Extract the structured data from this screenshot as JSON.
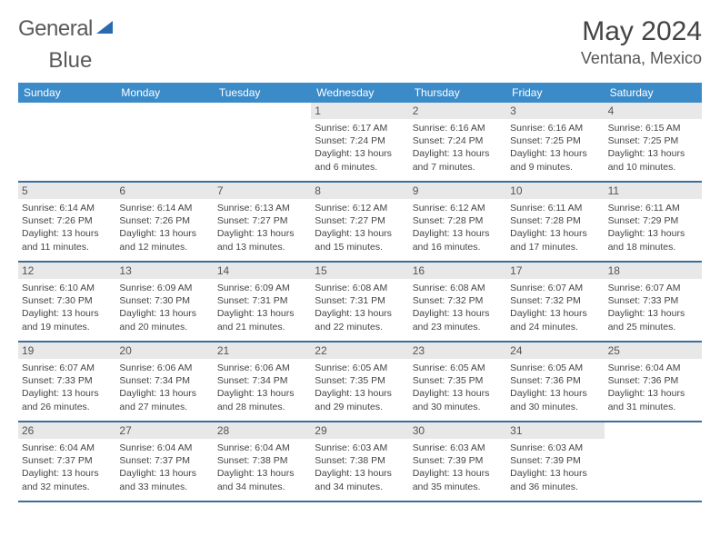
{
  "logo": {
    "text1": "General",
    "text2": "Blue",
    "icon_color": "#2a6bb0"
  },
  "title": "May 2024",
  "location": "Ventana, Mexico",
  "colors": {
    "header_bg": "#3b8bc9",
    "header_text": "#ffffff",
    "daynum_bg": "#e8e8e8",
    "week_border": "#3b6e9c",
    "body_text": "#444444"
  },
  "day_names": [
    "Sunday",
    "Monday",
    "Tuesday",
    "Wednesday",
    "Thursday",
    "Friday",
    "Saturday"
  ],
  "weeks": [
    [
      null,
      null,
      null,
      {
        "n": "1",
        "sr": "6:17 AM",
        "ss": "7:24 PM",
        "dl": "13 hours and 6 minutes."
      },
      {
        "n": "2",
        "sr": "6:16 AM",
        "ss": "7:24 PM",
        "dl": "13 hours and 7 minutes."
      },
      {
        "n": "3",
        "sr": "6:16 AM",
        "ss": "7:25 PM",
        "dl": "13 hours and 9 minutes."
      },
      {
        "n": "4",
        "sr": "6:15 AM",
        "ss": "7:25 PM",
        "dl": "13 hours and 10 minutes."
      }
    ],
    [
      {
        "n": "5",
        "sr": "6:14 AM",
        "ss": "7:26 PM",
        "dl": "13 hours and 11 minutes."
      },
      {
        "n": "6",
        "sr": "6:14 AM",
        "ss": "7:26 PM",
        "dl": "13 hours and 12 minutes."
      },
      {
        "n": "7",
        "sr": "6:13 AM",
        "ss": "7:27 PM",
        "dl": "13 hours and 13 minutes."
      },
      {
        "n": "8",
        "sr": "6:12 AM",
        "ss": "7:27 PM",
        "dl": "13 hours and 15 minutes."
      },
      {
        "n": "9",
        "sr": "6:12 AM",
        "ss": "7:28 PM",
        "dl": "13 hours and 16 minutes."
      },
      {
        "n": "10",
        "sr": "6:11 AM",
        "ss": "7:28 PM",
        "dl": "13 hours and 17 minutes."
      },
      {
        "n": "11",
        "sr": "6:11 AM",
        "ss": "7:29 PM",
        "dl": "13 hours and 18 minutes."
      }
    ],
    [
      {
        "n": "12",
        "sr": "6:10 AM",
        "ss": "7:30 PM",
        "dl": "13 hours and 19 minutes."
      },
      {
        "n": "13",
        "sr": "6:09 AM",
        "ss": "7:30 PM",
        "dl": "13 hours and 20 minutes."
      },
      {
        "n": "14",
        "sr": "6:09 AM",
        "ss": "7:31 PM",
        "dl": "13 hours and 21 minutes."
      },
      {
        "n": "15",
        "sr": "6:08 AM",
        "ss": "7:31 PM",
        "dl": "13 hours and 22 minutes."
      },
      {
        "n": "16",
        "sr": "6:08 AM",
        "ss": "7:32 PM",
        "dl": "13 hours and 23 minutes."
      },
      {
        "n": "17",
        "sr": "6:07 AM",
        "ss": "7:32 PM",
        "dl": "13 hours and 24 minutes."
      },
      {
        "n": "18",
        "sr": "6:07 AM",
        "ss": "7:33 PM",
        "dl": "13 hours and 25 minutes."
      }
    ],
    [
      {
        "n": "19",
        "sr": "6:07 AM",
        "ss": "7:33 PM",
        "dl": "13 hours and 26 minutes."
      },
      {
        "n": "20",
        "sr": "6:06 AM",
        "ss": "7:34 PM",
        "dl": "13 hours and 27 minutes."
      },
      {
        "n": "21",
        "sr": "6:06 AM",
        "ss": "7:34 PM",
        "dl": "13 hours and 28 minutes."
      },
      {
        "n": "22",
        "sr": "6:05 AM",
        "ss": "7:35 PM",
        "dl": "13 hours and 29 minutes."
      },
      {
        "n": "23",
        "sr": "6:05 AM",
        "ss": "7:35 PM",
        "dl": "13 hours and 30 minutes."
      },
      {
        "n": "24",
        "sr": "6:05 AM",
        "ss": "7:36 PM",
        "dl": "13 hours and 30 minutes."
      },
      {
        "n": "25",
        "sr": "6:04 AM",
        "ss": "7:36 PM",
        "dl": "13 hours and 31 minutes."
      }
    ],
    [
      {
        "n": "26",
        "sr": "6:04 AM",
        "ss": "7:37 PM",
        "dl": "13 hours and 32 minutes."
      },
      {
        "n": "27",
        "sr": "6:04 AM",
        "ss": "7:37 PM",
        "dl": "13 hours and 33 minutes."
      },
      {
        "n": "28",
        "sr": "6:04 AM",
        "ss": "7:38 PM",
        "dl": "13 hours and 34 minutes."
      },
      {
        "n": "29",
        "sr": "6:03 AM",
        "ss": "7:38 PM",
        "dl": "13 hours and 34 minutes."
      },
      {
        "n": "30",
        "sr": "6:03 AM",
        "ss": "7:39 PM",
        "dl": "13 hours and 35 minutes."
      },
      {
        "n": "31",
        "sr": "6:03 AM",
        "ss": "7:39 PM",
        "dl": "13 hours and 36 minutes."
      },
      null
    ]
  ],
  "labels": {
    "sunrise": "Sunrise:",
    "sunset": "Sunset:",
    "daylight": "Daylight:"
  }
}
